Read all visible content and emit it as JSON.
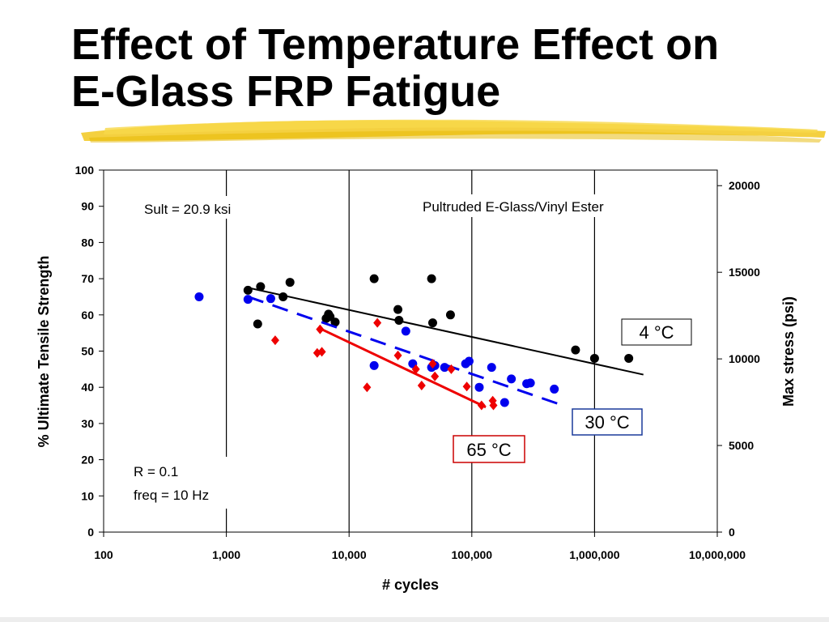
{
  "slide": {
    "title_line1": "Effect of Temperature Effect on",
    "title_line2": "E-Glass FRP Fatigue"
  },
  "chart_data": {
    "type": "scatter",
    "xscale": "log",
    "xlabel": "# cycles",
    "ylabel": "% Ultimate Tensile Strength",
    "y2label": "Max stress (psi)",
    "xlim": [
      100,
      10000000
    ],
    "ylim": [
      0,
      100
    ],
    "y2lim": [
      0,
      20900
    ],
    "x_ticks": [
      100,
      1000,
      10000,
      100000,
      1000000,
      10000000
    ],
    "x_tick_labels": [
      "100",
      "1,000",
      "10,000",
      "100,000",
      "1,000,000",
      "10,000,000"
    ],
    "y_ticks": [
      0,
      10,
      20,
      30,
      40,
      50,
      60,
      70,
      80,
      90,
      100
    ],
    "y2_ticks": [
      0,
      5000,
      10000,
      15000,
      20000
    ],
    "grid": "vertical-major",
    "annotations": {
      "sult": "Sult = 20.9 ksi",
      "material": "Pultruded E-Glass/Vinyl Ester",
      "r_ratio": "R = 0.1",
      "freq": "freq = 10 Hz"
    },
    "series": [
      {
        "name": "4 °C",
        "color": "#000000",
        "marker": "circle",
        "points": [
          [
            1500,
            66.8
          ],
          [
            1800,
            57.5
          ],
          [
            1900,
            67.8
          ],
          [
            2900,
            65.0
          ],
          [
            3300,
            69.0
          ],
          [
            6500,
            59.0
          ],
          [
            6800,
            60.2
          ],
          [
            7000,
            59.5
          ],
          [
            7700,
            58.0
          ],
          [
            16000,
            70.0
          ],
          [
            25000,
            61.5
          ],
          [
            25500,
            58.5
          ],
          [
            47000,
            70.0
          ],
          [
            48000,
            57.8
          ],
          [
            67000,
            60.0
          ],
          [
            700000,
            50.3
          ],
          [
            1000000,
            48.0
          ],
          [
            1900000,
            48.0
          ]
        ],
        "trend": [
          [
            1500,
            67.5
          ],
          [
            2500000,
            43.5
          ]
        ]
      },
      {
        "name": "30 °C",
        "color": "#0000ee",
        "marker": "circle",
        "points": [
          [
            600,
            65.0
          ],
          [
            1500,
            64.3
          ],
          [
            2300,
            64.5
          ],
          [
            16000,
            46.0
          ],
          [
            29000,
            55.5
          ],
          [
            33000,
            46.5
          ],
          [
            47000,
            45.5
          ],
          [
            50000,
            46.0
          ],
          [
            60000,
            45.5
          ],
          [
            89000,
            46.5
          ],
          [
            95000,
            47.2
          ],
          [
            115000,
            40.0
          ],
          [
            145000,
            45.5
          ],
          [
            210000,
            42.3
          ],
          [
            280000,
            41.0
          ],
          [
            300000,
            41.2
          ],
          [
            470000,
            39.5
          ],
          [
            185000,
            35.8
          ]
        ],
        "trend": [
          [
            1500,
            65.0
          ],
          [
            500000,
            35.5
          ]
        ]
      },
      {
        "name": "65 °C",
        "color": "#ee0000",
        "marker": "diamond",
        "points": [
          [
            2500,
            53.0
          ],
          [
            5500,
            49.5
          ],
          [
            6000,
            49.8
          ],
          [
            5800,
            56.0
          ],
          [
            14000,
            40.0
          ],
          [
            17000,
            57.8
          ],
          [
            25000,
            48.8
          ],
          [
            35000,
            45.0
          ],
          [
            39000,
            40.5
          ],
          [
            48000,
            46.5
          ],
          [
            50000,
            43.0
          ],
          [
            68000,
            45.0
          ],
          [
            91000,
            40.2
          ],
          [
            120000,
            35.0
          ],
          [
            148000,
            36.3
          ],
          [
            150000,
            35.0
          ]
        ],
        "trend": [
          [
            6000,
            56.0
          ],
          [
            130000,
            34.5
          ]
        ]
      }
    ]
  }
}
